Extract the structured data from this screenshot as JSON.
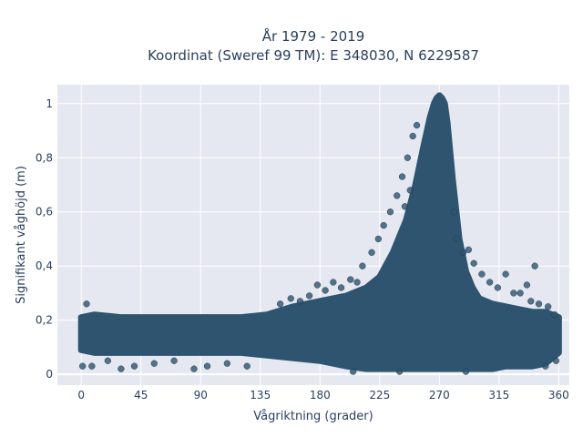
{
  "chart_data": {
    "type": "scatter",
    "title": "År 1979 - 2019",
    "subtitle": "Koordinat (Sweref 99 TM): E 348030, N 6229587",
    "xlabel": "Vågriktning (grader)",
    "ylabel": "Signifikant våghöjd (m)",
    "xlim": [
      -18,
      368
    ],
    "ylim": [
      -0.04,
      1.07
    ],
    "xticks": [
      0,
      45,
      90,
      135,
      180,
      225,
      270,
      315,
      360
    ],
    "xtick_labels": [
      "0",
      "45",
      "90",
      "135",
      "180",
      "225",
      "270",
      "315",
      "360"
    ],
    "yticks": [
      0,
      0.2,
      0.4,
      0.6,
      0.8,
      1
    ],
    "ytick_labels": [
      "0",
      "0,2",
      "0,4",
      "0,6",
      "0,8",
      "1"
    ],
    "grid": true,
    "legend": "none",
    "colors": {
      "marker": "#2e5470",
      "plot_bg": "#e5e8f1",
      "grid": "#ffffff",
      "text": "#2a3f5f"
    },
    "envelope": {
      "x": [
        0,
        10,
        30,
        60,
        90,
        120,
        140,
        160,
        180,
        200,
        215,
        225,
        235,
        245,
        252,
        258,
        263,
        266,
        268,
        270,
        272,
        274,
        276,
        280,
        285,
        290,
        295,
        300,
        310,
        320,
        330,
        340,
        350,
        360
      ],
      "upper": [
        0.21,
        0.22,
        0.21,
        0.21,
        0.21,
        0.21,
        0.22,
        0.25,
        0.27,
        0.29,
        0.32,
        0.36,
        0.45,
        0.57,
        0.7,
        0.84,
        0.95,
        1.0,
        1.02,
        1.03,
        1.02,
        1.0,
        0.93,
        0.72,
        0.5,
        0.38,
        0.32,
        0.28,
        0.26,
        0.25,
        0.24,
        0.23,
        0.23,
        0.21
      ],
      "lower": [
        0.09,
        0.08,
        0.08,
        0.08,
        0.08,
        0.08,
        0.07,
        0.06,
        0.05,
        0.03,
        0.02,
        0.02,
        0.02,
        0.02,
        0.02,
        0.02,
        0.02,
        0.02,
        0.02,
        0.02,
        0.02,
        0.02,
        0.02,
        0.02,
        0.02,
        0.02,
        0.02,
        0.02,
        0.02,
        0.03,
        0.03,
        0.03,
        0.04,
        0.08
      ]
    },
    "outliers": [
      {
        "x": 4,
        "y": 0.26
      },
      {
        "x": 1,
        "y": 0.03
      },
      {
        "x": 8,
        "y": 0.03
      },
      {
        "x": 20,
        "y": 0.05
      },
      {
        "x": 30,
        "y": 0.02
      },
      {
        "x": 40,
        "y": 0.03
      },
      {
        "x": 55,
        "y": 0.04
      },
      {
        "x": 70,
        "y": 0.05
      },
      {
        "x": 85,
        "y": 0.02
      },
      {
        "x": 95,
        "y": 0.03
      },
      {
        "x": 110,
        "y": 0.04
      },
      {
        "x": 125,
        "y": 0.03
      },
      {
        "x": 150,
        "y": 0.26
      },
      {
        "x": 158,
        "y": 0.28
      },
      {
        "x": 165,
        "y": 0.27
      },
      {
        "x": 172,
        "y": 0.29
      },
      {
        "x": 178,
        "y": 0.33
      },
      {
        "x": 184,
        "y": 0.31
      },
      {
        "x": 190,
        "y": 0.34
      },
      {
        "x": 196,
        "y": 0.32
      },
      {
        "x": 203,
        "y": 0.35
      },
      {
        "x": 208,
        "y": 0.34
      },
      {
        "x": 212,
        "y": 0.4
      },
      {
        "x": 219,
        "y": 0.45
      },
      {
        "x": 224,
        "y": 0.5
      },
      {
        "x": 228,
        "y": 0.55
      },
      {
        "x": 233,
        "y": 0.6
      },
      {
        "x": 238,
        "y": 0.66
      },
      {
        "x": 242,
        "y": 0.73
      },
      {
        "x": 246,
        "y": 0.8
      },
      {
        "x": 250,
        "y": 0.88
      },
      {
        "x": 253,
        "y": 0.92
      },
      {
        "x": 248,
        "y": 0.68
      },
      {
        "x": 244,
        "y": 0.62
      },
      {
        "x": 281,
        "y": 0.6
      },
      {
        "x": 283,
        "y": 0.5
      },
      {
        "x": 288,
        "y": 0.45
      },
      {
        "x": 292,
        "y": 0.46
      },
      {
        "x": 296,
        "y": 0.41
      },
      {
        "x": 302,
        "y": 0.37
      },
      {
        "x": 308,
        "y": 0.34
      },
      {
        "x": 314,
        "y": 0.32
      },
      {
        "x": 320,
        "y": 0.37
      },
      {
        "x": 326,
        "y": 0.3
      },
      {
        "x": 331,
        "y": 0.3
      },
      {
        "x": 339,
        "y": 0.27
      },
      {
        "x": 342,
        "y": 0.4
      },
      {
        "x": 336,
        "y": 0.33
      },
      {
        "x": 345,
        "y": 0.26
      },
      {
        "x": 352,
        "y": 0.25
      },
      {
        "x": 357,
        "y": 0.22
      },
      {
        "x": 358,
        "y": 0.05
      },
      {
        "x": 350,
        "y": 0.03
      },
      {
        "x": 240,
        "y": 0.01
      },
      {
        "x": 290,
        "y": 0.01
      },
      {
        "x": 205,
        "y": 0.01
      }
    ]
  }
}
